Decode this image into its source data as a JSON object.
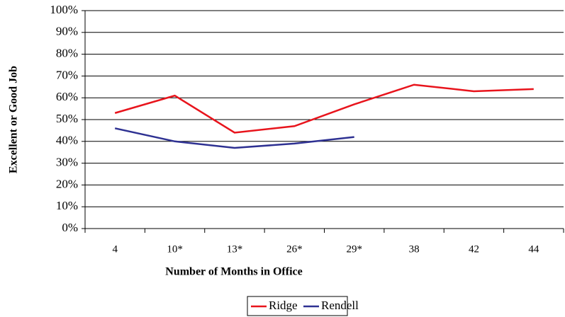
{
  "chart_data": {
    "type": "line",
    "xlabel": "Number of Months in Office",
    "ylabel": "Excellent or Good Job",
    "categories": [
      "4",
      "10*",
      "13*",
      "26*",
      "29*",
      "38",
      "42",
      "44"
    ],
    "series": [
      {
        "name": "Ridge",
        "color": "#e8141c",
        "values": [
          53,
          61,
          44,
          47,
          57,
          66,
          63,
          64
        ]
      },
      {
        "name": "Rendell",
        "color": "#2e3192",
        "values": [
          46,
          40,
          37,
          39,
          42,
          null,
          null,
          null
        ]
      }
    ],
    "ylim": [
      0,
      100
    ],
    "yticks": [
      {
        "value": 0,
        "label": "0%"
      },
      {
        "value": 10,
        "label": "10%"
      },
      {
        "value": 20,
        "label": "20%"
      },
      {
        "value": 30,
        "label": "30%"
      },
      {
        "value": 40,
        "label": "40%"
      },
      {
        "value": 50,
        "label": "50%"
      },
      {
        "value": 60,
        "label": "60%"
      },
      {
        "value": 70,
        "label": "70%"
      },
      {
        "value": 80,
        "label": "80%"
      },
      {
        "value": 90,
        "label": "90%"
      },
      {
        "value": 100,
        "label": "100%"
      }
    ],
    "grid": true,
    "legend": "bottom"
  }
}
